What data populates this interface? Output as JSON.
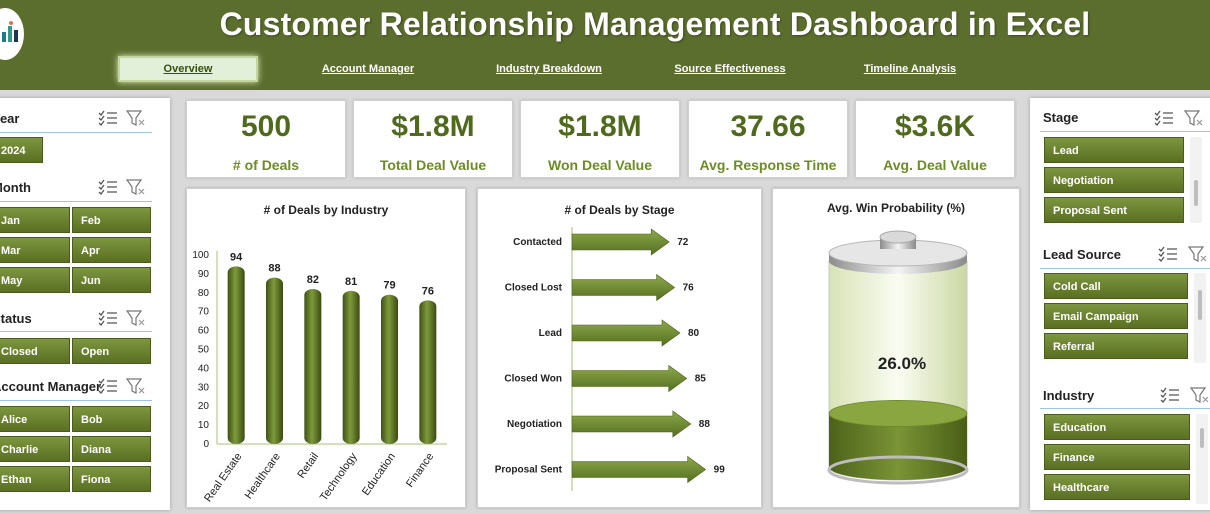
{
  "header": {
    "title": "Customer Relationship Management Dashboard in Excel",
    "tabs": [
      {
        "label": "Overview",
        "active": true
      },
      {
        "label": "Account Manager",
        "active": false
      },
      {
        "label": "Industry Breakdown",
        "active": false
      },
      {
        "label": "Source Effectiveness",
        "active": false
      },
      {
        "label": "Timeline Analysis",
        "active": false
      }
    ]
  },
  "left_slicers": {
    "year": {
      "title": "Year",
      "items": [
        "2024"
      ]
    },
    "month": {
      "title": "Month",
      "items": [
        "Jan",
        "Feb",
        "Mar",
        "Apr",
        "May",
        "Jun"
      ]
    },
    "status": {
      "title": "Status",
      "items": [
        "Closed",
        "Open"
      ]
    },
    "account_manager": {
      "title": "Account Manager",
      "items": [
        "Alice",
        "Bob",
        "Charlie",
        "Diana",
        "Ethan",
        "Fiona"
      ]
    }
  },
  "right_slicers": {
    "stage": {
      "title": "Stage",
      "items": [
        "Lead",
        "Negotiation",
        "Proposal Sent"
      ]
    },
    "lead_source": {
      "title": "Lead Source",
      "items": [
        "Cold Call",
        "Email Campaign",
        "Referral"
      ]
    },
    "industry": {
      "title": "Industry",
      "items": [
        "Education",
        "Finance",
        "Healthcare"
      ]
    }
  },
  "kpis": [
    {
      "value": "500",
      "label": "# of Deals"
    },
    {
      "value": "$1.8M",
      "label": "Total Deal Value"
    },
    {
      "value": "$1.8M",
      "label": "Won Deal Value"
    },
    {
      "value": "37.66",
      "label": "Avg. Response Time"
    },
    {
      "value": "$3.6K",
      "label": "Avg. Deal Value"
    }
  ],
  "colors": {
    "header_bg": "#5c6e2e",
    "accent": "#6b8e23",
    "button_top": "#7d9640",
    "button_bottom": "#5a6f22"
  },
  "chart_data": [
    {
      "type": "bar",
      "title": "# of Deals by Industry",
      "categories": [
        "Real Estate",
        "Healthcare",
        "Retail",
        "Technology",
        "Education",
        "Finance"
      ],
      "values": [
        94,
        88,
        82,
        81,
        79,
        76
      ],
      "ylim": [
        0,
        100
      ],
      "yticks": [
        0,
        10,
        20,
        30,
        40,
        50,
        60,
        70,
        80,
        90,
        100
      ]
    },
    {
      "type": "bar",
      "orientation": "horizontal",
      "title": "# of Deals by Stage",
      "categories": [
        "Contacted",
        "Closed Lost",
        "Lead",
        "Closed Won",
        "Negotiation",
        "Proposal Sent"
      ],
      "values": [
        72,
        76,
        80,
        85,
        88,
        99
      ]
    },
    {
      "type": "gauge",
      "title": "Avg. Win Probability (%)",
      "value": 26.0,
      "value_label": "26.0%"
    }
  ]
}
